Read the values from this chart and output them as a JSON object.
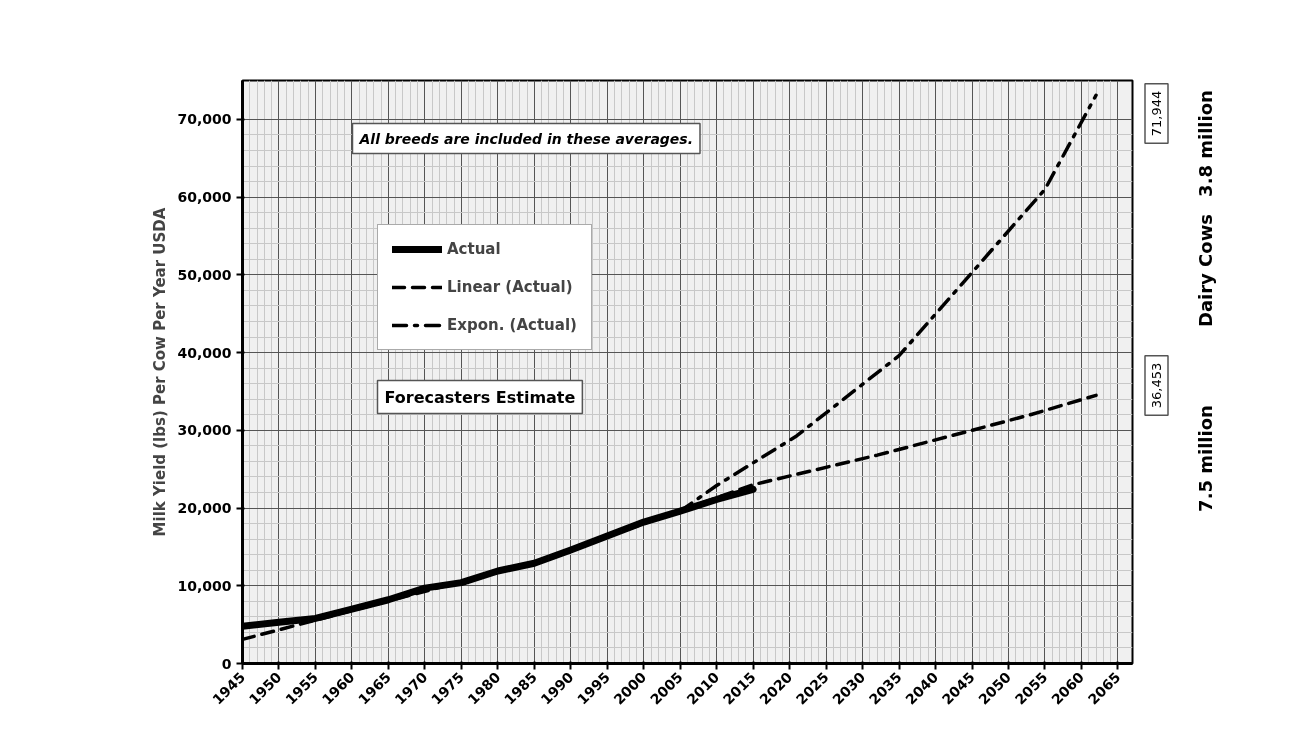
{
  "chart_data": {
    "type": "line",
    "ylabel": "Milk Yield (lbs) Per Cow Per Year USDA",
    "xlim": [
      1945,
      2067
    ],
    "xticks": [
      1945,
      1950,
      1955,
      1960,
      1965,
      1970,
      1975,
      1980,
      1985,
      1990,
      1995,
      2000,
      2005,
      2010,
      2015,
      2020,
      2025,
      2030,
      2035,
      2040,
      2045,
      2050,
      2055,
      2060,
      2065
    ],
    "ylim": [
      0,
      75000
    ],
    "yticks": [
      {
        "value": 0,
        "label": "0"
      },
      {
        "value": 10000,
        "label": "10,000"
      },
      {
        "value": 20000,
        "label": "20,000"
      },
      {
        "value": 30000,
        "label": "30,000"
      },
      {
        "value": 40000,
        "label": "40,000"
      },
      {
        "value": 50000,
        "label": "50,000"
      },
      {
        "value": 60000,
        "label": "60,000"
      },
      {
        "value": 70000,
        "label": "70,000"
      }
    ],
    "grid": true,
    "legend": "top left",
    "series": [
      {
        "name": "Actual",
        "color": "#000000",
        "line_style": "solid",
        "x": [
          1945,
          1950,
          1955,
          1960,
          1965,
          1970,
          1975,
          1980,
          1985,
          1990,
          1995,
          2000,
          2005,
          2010,
          2015
        ],
        "values": [
          4800,
          5300,
          5800,
          7000,
          8200,
          9700,
          10400,
          11900,
          12900,
          14600,
          16400,
          18200,
          19600,
          21100,
          22400
        ]
      },
      {
        "name": "Linear (Actual)",
        "color": "#000000",
        "line_style": "dashed",
        "x": [
          1945,
          1985,
          2015,
          2032,
          2045,
          2053,
          2062
        ],
        "values": [
          3100,
          13000,
          23000,
          26800,
          30000,
          32000,
          34500
        ]
      },
      {
        "name": "Expon. (Actual)",
        "color": "#000000",
        "line_style": "dashdot",
        "x": [
          2005,
          2010,
          2021,
          2035,
          2045,
          2055,
          2062
        ],
        "values": [
          19600,
          22900,
          29300,
          39600,
          50300,
          61000,
          73100
        ]
      }
    ],
    "annotations": [
      "All breeds are included in these averages.",
      "Forecasters Estimate",
      "71,944",
      "36,453",
      "3.8 million",
      "Dairy Cows",
      "7.5 million"
    ]
  }
}
